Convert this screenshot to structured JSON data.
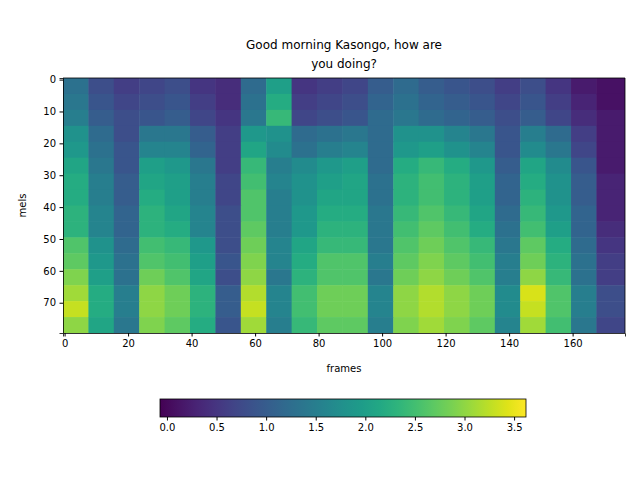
{
  "chart_data": {
    "type": "heatmap",
    "title": "Good morning Kasongo, how are\nyou doing?",
    "x_label": "frames",
    "y_label": "mels",
    "color": "viridis",
    "xlim": [
      -0.5,
      176.5
    ],
    "ylim": [
      79.5,
      -0.5
    ],
    "xticks": [
      0,
      20,
      40,
      60,
      80,
      100,
      120,
      140,
      160
    ],
    "yticks": [
      0,
      10,
      20,
      30,
      40,
      50,
      60,
      70
    ],
    "x_edges": [
      -0.5,
      7.5,
      15.5,
      23.5,
      31.5,
      39.5,
      47.5,
      55.5,
      63.5,
      71.5,
      79.5,
      87.5,
      95.5,
      103.5,
      111.5,
      119.5,
      127.5,
      135.5,
      143.5,
      151.5,
      159.5,
      167.5,
      176.5
    ],
    "y_edges": [
      -0.5,
      4.5,
      9.5,
      14.5,
      19.5,
      24.5,
      29.5,
      34.5,
      39.5,
      44.5,
      49.5,
      54.5,
      59.5,
      64.5,
      69.5,
      74.5,
      79.5
    ],
    "values": [
      [
        1.3,
        0.8,
        0.6,
        0.7,
        0.8,
        0.5,
        0.4,
        1.2,
        2.0,
        0.5,
        0.6,
        0.7,
        1.0,
        1.2,
        1.0,
        0.9,
        0.8,
        0.6,
        0.8,
        0.5,
        0.2,
        0.1
      ],
      [
        1.4,
        0.9,
        0.7,
        0.8,
        0.9,
        0.6,
        0.4,
        1.3,
        2.2,
        0.6,
        0.7,
        0.8,
        1.1,
        1.3,
        1.1,
        1.0,
        0.9,
        0.7,
        0.9,
        0.6,
        0.3,
        0.1
      ],
      [
        1.5,
        1.0,
        0.8,
        0.9,
        1.0,
        0.7,
        0.5,
        1.4,
        2.4,
        0.7,
        0.8,
        0.9,
        1.2,
        1.4,
        1.2,
        1.1,
        1.0,
        0.8,
        1.0,
        0.7,
        0.4,
        0.2
      ],
      [
        1.8,
        1.2,
        0.8,
        1.4,
        1.4,
        1.0,
        0.6,
        1.9,
        1.8,
        1.2,
        1.3,
        1.4,
        1.2,
        1.8,
        1.8,
        1.6,
        1.4,
        0.9,
        1.5,
        1.2,
        0.6,
        0.2
      ],
      [
        1.9,
        1.3,
        0.9,
        1.6,
        1.6,
        1.1,
        0.6,
        2.1,
        1.7,
        1.3,
        1.5,
        1.6,
        1.2,
        1.9,
        2.0,
        1.8,
        1.6,
        0.9,
        1.7,
        1.4,
        0.7,
        0.2
      ],
      [
        2.1,
        1.4,
        0.9,
        2.0,
        1.9,
        1.4,
        0.6,
        2.4,
        1.5,
        1.7,
        1.9,
        2.0,
        1.2,
        2.2,
        2.4,
        2.2,
        1.9,
        1.0,
        2.1,
        1.7,
        0.9,
        0.2
      ],
      [
        2.2,
        1.5,
        1.0,
        2.1,
        2.0,
        1.5,
        0.7,
        2.5,
        1.6,
        1.8,
        2.0,
        2.1,
        1.3,
        2.3,
        2.5,
        2.3,
        2.0,
        1.1,
        2.2,
        1.8,
        1.0,
        0.3
      ],
      [
        2.2,
        1.5,
        1.0,
        2.2,
        2.0,
        1.5,
        0.7,
        2.6,
        1.5,
        1.8,
        2.1,
        2.1,
        1.3,
        2.3,
        2.5,
        2.3,
        2.0,
        1.1,
        2.3,
        1.8,
        1.0,
        0.3
      ],
      [
        2.3,
        1.6,
        1.1,
        2.3,
        2.1,
        1.6,
        0.8,
        2.6,
        1.5,
        1.9,
        2.2,
        2.2,
        1.4,
        2.4,
        2.6,
        2.4,
        2.1,
        1.2,
        2.4,
        1.9,
        1.1,
        0.3
      ],
      [
        2.3,
        1.6,
        1.1,
        2.3,
        2.2,
        1.6,
        0.8,
        2.7,
        1.5,
        1.9,
        2.3,
        2.3,
        1.4,
        2.5,
        2.7,
        2.5,
        2.2,
        1.3,
        2.5,
        2.0,
        1.1,
        0.4
      ],
      [
        2.6,
        1.8,
        1.2,
        2.5,
        2.4,
        1.9,
        0.8,
        2.8,
        1.6,
        2.1,
        2.4,
        2.4,
        1.4,
        2.6,
        2.8,
        2.6,
        2.4,
        1.4,
        2.7,
        2.2,
        1.2,
        0.5
      ],
      [
        2.7,
        1.9,
        1.3,
        2.6,
        2.5,
        2.0,
        0.9,
        2.9,
        1.6,
        2.2,
        2.6,
        2.6,
        1.5,
        2.7,
        2.9,
        2.7,
        2.5,
        1.5,
        2.8,
        2.3,
        1.3,
        0.6
      ],
      [
        2.9,
        2.0,
        1.3,
        2.8,
        2.6,
        2.1,
        0.8,
        3.0,
        1.4,
        2.3,
        2.6,
        2.6,
        1.4,
        2.8,
        3.0,
        2.8,
        2.6,
        1.5,
        3.0,
        2.4,
        1.3,
        0.6
      ],
      [
        3.1,
        2.2,
        1.5,
        3.0,
        2.8,
        2.3,
        1.0,
        3.2,
        1.6,
        2.5,
        2.8,
        2.8,
        1.6,
        3.0,
        3.2,
        3.0,
        2.8,
        1.7,
        3.4,
        2.6,
        1.5,
        0.8
      ],
      [
        3.3,
        2.2,
        1.5,
        3.0,
        2.8,
        2.3,
        1.0,
        3.3,
        1.6,
        2.5,
        2.8,
        2.8,
        1.6,
        3.0,
        3.2,
        3.0,
        2.8,
        1.7,
        3.3,
        2.6,
        1.5,
        0.8
      ],
      [
        3.0,
        2.1,
        1.4,
        2.9,
        2.7,
        2.2,
        0.9,
        3.1,
        1.5,
        2.4,
        2.7,
        2.7,
        1.5,
        2.9,
        3.1,
        2.9,
        2.7,
        1.6,
        3.1,
        2.5,
        1.4,
        0.7
      ]
    ],
    "colorbar": {
      "range": [
        -0.07,
        3.62
      ],
      "ticks": [
        {
          "value": 0,
          "label": "0.0"
        },
        {
          "value": 0.5,
          "label": "0.5"
        },
        {
          "value": 1,
          "label": "1.0"
        },
        {
          "value": 1.5,
          "label": "1.5"
        },
        {
          "value": 2,
          "label": "2.0"
        },
        {
          "value": 2.5,
          "label": "2.5"
        },
        {
          "value": 3,
          "label": "3.0"
        },
        {
          "value": 3.5,
          "label": "3.5"
        }
      ]
    }
  }
}
